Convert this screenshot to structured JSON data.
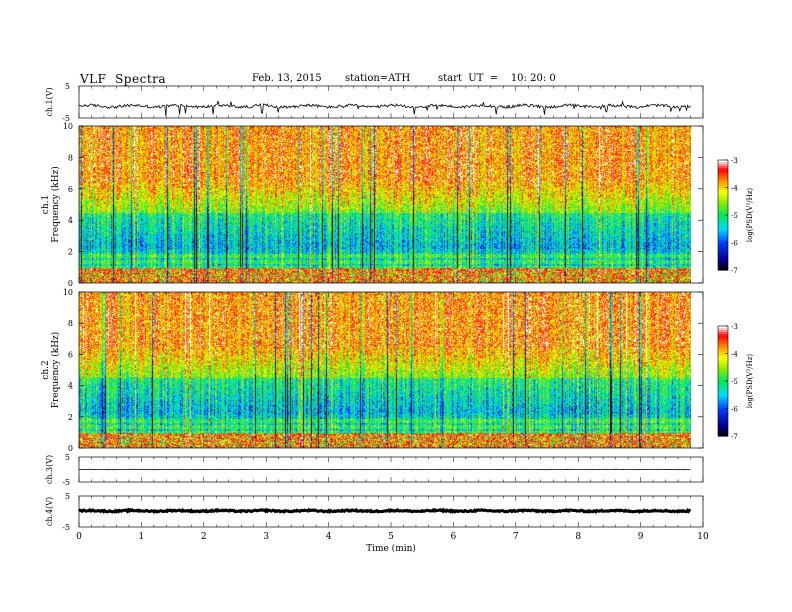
{
  "header": {
    "title": "VLF  Spectra",
    "date": "Feb. 13, 2015",
    "station": "station=ATH",
    "start": "start  UT  =    10: 20: 0"
  },
  "chart_data": [
    {
      "type": "line",
      "panel": "ch1-waveform",
      "ylabel": "ch.1(V)",
      "ylim": [
        -5,
        5
      ],
      "yticks": [
        "5",
        "-5"
      ],
      "xlim": [
        0,
        10
      ],
      "data_xmax": 9.8,
      "baseline": -1.3,
      "color": "#000000"
    },
    {
      "type": "heatmap",
      "panel": "ch1-spectrogram",
      "ylabel": "ch.1\nFrequency  (kHz)",
      "ylabel_line1": "ch.1",
      "ylabel_line2": "Frequency  (kHz)",
      "ylim": [
        0,
        10
      ],
      "yticks": [
        "0",
        "2",
        "4",
        "6",
        "8",
        "10"
      ],
      "xlim": [
        0,
        10
      ],
      "data_xmax": 9.8,
      "colorbar": {
        "label": "log(PSD(V²/Hz)",
        "range": [
          -7,
          -3
        ],
        "ticks": [
          "-3",
          "-4",
          "-5",
          "-6",
          "-7"
        ]
      }
    },
    {
      "type": "heatmap",
      "panel": "ch2-spectrogram",
      "ylabel": "ch.2\nFrequency  (kHz)",
      "ylabel_line1": "ch.2",
      "ylabel_line2": "Frequency  (kHz)",
      "ylim": [
        0,
        10
      ],
      "yticks": [
        "0",
        "2",
        "4",
        "6",
        "8",
        "10"
      ],
      "xlim": [
        0,
        10
      ],
      "data_xmax": 9.8,
      "colorbar": {
        "label": "log(PSD(V²/Hz)",
        "range": [
          -7,
          -3
        ],
        "ticks": [
          "-3",
          "-4",
          "-5",
          "-6",
          "-7"
        ]
      }
    },
    {
      "type": "line",
      "panel": "ch3-waveform",
      "ylabel": "ch.3(V)",
      "ylim": [
        -5,
        5
      ],
      "yticks": [
        "5",
        "-5"
      ],
      "xlim": [
        0,
        10
      ],
      "data_xmax": 9.8,
      "baseline": 0.0,
      "color": "#000000"
    },
    {
      "type": "line",
      "panel": "ch4-waveform",
      "ylabel": "ch.4(V)",
      "ylim": [
        -5,
        5
      ],
      "yticks": [
        "5",
        "-5"
      ],
      "xlim": [
        0,
        10
      ],
      "data_xmax": 9.8,
      "baseline": 0.2,
      "color": "#000000"
    }
  ],
  "x_axis": {
    "label": "Time  (min)",
    "ticks": [
      "0",
      "1",
      "2",
      "3",
      "4",
      "5",
      "6",
      "7",
      "8",
      "9",
      "10"
    ]
  }
}
